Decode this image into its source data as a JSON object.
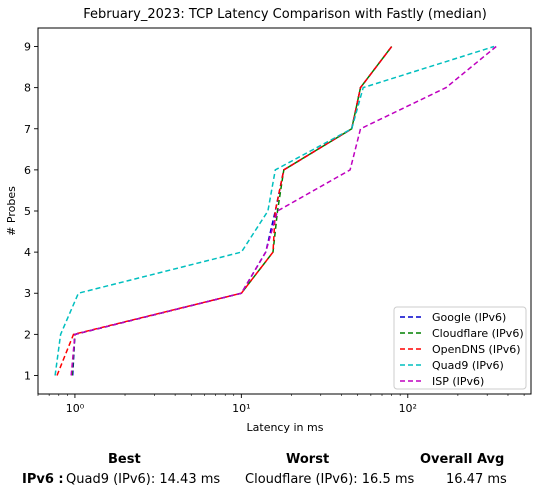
{
  "chart_data": {
    "type": "line",
    "title": "February_2023: TCP Latency Comparison with Fastly (median)",
    "xlabel": "Latency in ms",
    "ylabel": "# Probes",
    "x_scale": "log",
    "xlim": [
      0.6,
      550
    ],
    "ylim": [
      0.55,
      9.45
    ],
    "x_ticks": [
      1,
      10,
      100
    ],
    "x_tick_labels": [
      "10⁰",
      "10¹",
      "10²"
    ],
    "y_ticks": [
      1,
      2,
      3,
      4,
      5,
      6,
      7,
      8,
      9
    ],
    "y_tick_labels": [
      "1",
      "2",
      "3",
      "4",
      "5",
      "6",
      "7",
      "8",
      "9"
    ],
    "legend_position": "lower-right",
    "grid": false,
    "series": [
      {
        "name": "Google (IPv6)",
        "color": "#0000cc",
        "points": [
          [
            0.97,
            1
          ],
          [
            1.0,
            2
          ],
          [
            10.0,
            3
          ],
          [
            14.0,
            4
          ],
          [
            16.0,
            5
          ],
          [
            18.0,
            6
          ],
          [
            46.0,
            7
          ],
          [
            52.0,
            8
          ],
          [
            80.0,
            9
          ]
        ]
      },
      {
        "name": "Cloudflare (IPv6)",
        "color": "#008000",
        "points": [
          [
            0.96,
            1
          ],
          [
            1.0,
            2
          ],
          [
            10.0,
            3
          ],
          [
            15.5,
            4
          ],
          [
            16.5,
            5
          ],
          [
            18.0,
            6
          ],
          [
            46.0,
            7
          ],
          [
            52.0,
            8
          ],
          [
            80.0,
            9
          ]
        ]
      },
      {
        "name": "OpenDNS (IPv6)",
        "color": "#ff0000",
        "points": [
          [
            0.78,
            1
          ],
          [
            0.98,
            2
          ],
          [
            10.0,
            3
          ],
          [
            15.5,
            4
          ],
          [
            16.0,
            5
          ],
          [
            18.0,
            6
          ],
          [
            46.0,
            7
          ],
          [
            52.0,
            8
          ],
          [
            80.0,
            9
          ]
        ]
      },
      {
        "name": "Quad9 (IPv6)",
        "color": "#00bfbf",
        "points": [
          [
            0.76,
            1
          ],
          [
            0.82,
            2
          ],
          [
            1.05,
            3
          ],
          [
            10.0,
            4
          ],
          [
            14.43,
            5
          ],
          [
            16.0,
            6
          ],
          [
            46.0,
            7
          ],
          [
            54.0,
            8
          ],
          [
            330.0,
            9
          ]
        ]
      },
      {
        "name": "ISP (IPv6)",
        "color": "#bf00bf",
        "points": [
          [
            0.95,
            1
          ],
          [
            1.0,
            2
          ],
          [
            10.0,
            3
          ],
          [
            14.0,
            4
          ],
          [
            16.5,
            5
          ],
          [
            45.0,
            6
          ],
          [
            52.0,
            7
          ],
          [
            170.0,
            8
          ],
          [
            340.0,
            9
          ]
        ]
      }
    ]
  },
  "summary": {
    "headers": {
      "best": "Best",
      "worst": "Worst",
      "avg": "Overall Avg"
    },
    "row_label": "IPv6 :",
    "best_value": "Quad9 (IPv6): 14.43 ms",
    "worst_value": "Cloudflare (IPv6): 16.5 ms",
    "avg_value": "16.47 ms"
  }
}
